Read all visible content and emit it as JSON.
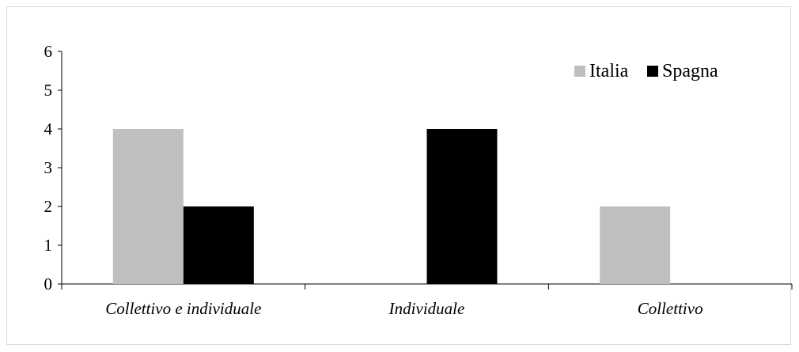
{
  "chart_data": {
    "type": "bar",
    "title": "",
    "xlabel": "",
    "ylabel": "",
    "categories": [
      "Collettivo e individuale",
      "Individuale",
      "Collettivo"
    ],
    "series": [
      {
        "name": "Italia",
        "color": "#bfbfbf",
        "values": [
          4,
          0,
          2
        ]
      },
      {
        "name": "Spagna",
        "color": "#000000",
        "values": [
          2,
          4,
          0
        ]
      }
    ],
    "ylim": [
      0,
      6
    ],
    "yticks": [
      "0",
      "1",
      "2",
      "3",
      "4",
      "5",
      "6"
    ],
    "grid": false,
    "legend": "top-right"
  }
}
